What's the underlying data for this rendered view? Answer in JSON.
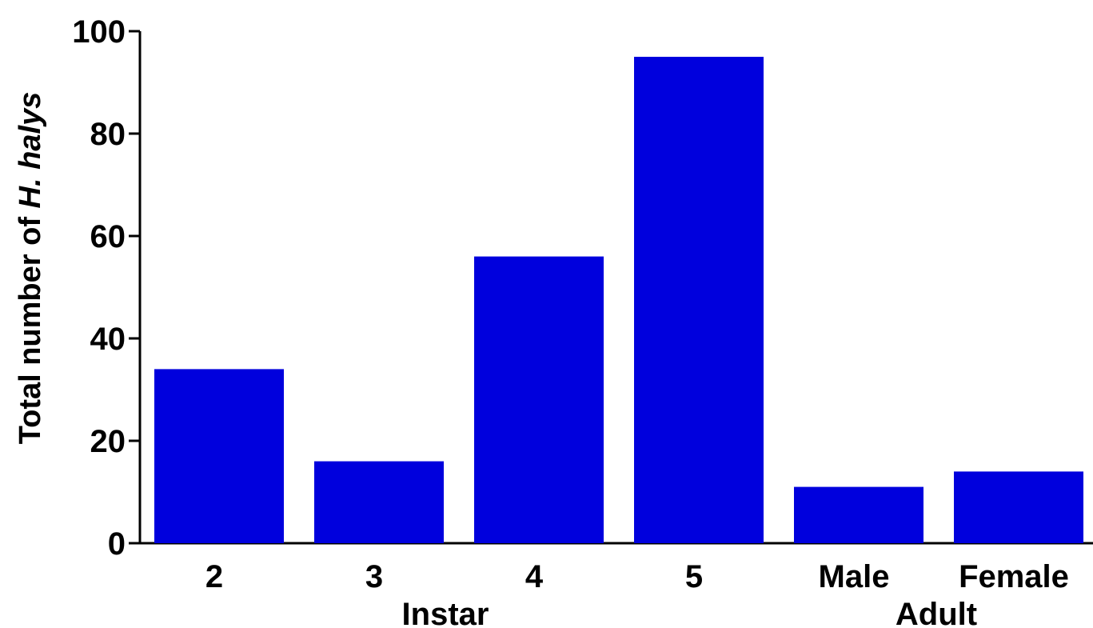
{
  "chart_data": {
    "type": "bar",
    "categories": [
      "2",
      "3",
      "4",
      "5",
      "Male",
      "Female"
    ],
    "values": [
      34,
      16,
      56,
      95,
      11,
      14
    ],
    "groups": [
      {
        "label": "Instar"
      },
      {
        "label": "Adult"
      }
    ],
    "ylabel": {
      "prefix": "Total number of ",
      "species": "H. halys"
    },
    "ylim": [
      0,
      100
    ],
    "yticks": [
      0,
      20,
      40,
      60,
      80,
      100
    ],
    "grid": false,
    "bar_color": "#0000dd"
  }
}
